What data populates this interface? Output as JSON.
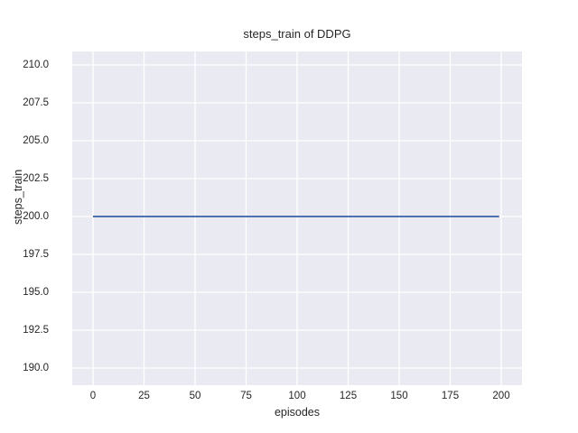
{
  "chart": {
    "title": "steps_train of DDPG",
    "xlabel": "episodes",
    "ylabel": "steps_train"
  },
  "chart_data": {
    "type": "line",
    "title": "steps_train of DDPG",
    "xlabel": "episodes",
    "ylabel": "steps_train",
    "grid": true,
    "legend": "none",
    "plot_background": "#eaeaf2",
    "grid_color": "#ffffff",
    "line_color": "#4c72b0",
    "text_color": "#262626",
    "x_ticks": [
      0,
      25,
      50,
      75,
      100,
      125,
      150,
      175,
      200
    ],
    "x_tick_labels": [
      "0",
      "25",
      "50",
      "75",
      "100",
      "125",
      "150",
      "175",
      "200"
    ],
    "y_ticks": [
      190.0,
      192.5,
      195.0,
      197.5,
      200.0,
      202.5,
      205.0,
      207.5,
      210.0
    ],
    "y_tick_labels": [
      "190.0",
      "192.5",
      "195.0",
      "197.5",
      "200.0",
      "202.5",
      "205.0",
      "207.5",
      "210.0"
    ],
    "xlim": [
      -10.2,
      210.2
    ],
    "ylim": [
      188.9,
      211.1
    ],
    "series": [
      {
        "name": "steps_train",
        "constant_value": 200,
        "x_start": 0,
        "x_end": 199,
        "points": [
          [
            0,
            200
          ],
          [
            199,
            200
          ]
        ]
      }
    ]
  }
}
